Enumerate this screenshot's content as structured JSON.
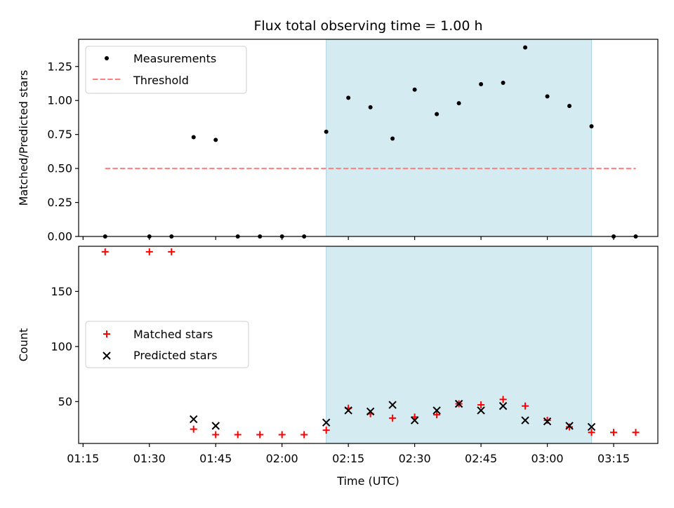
{
  "chart_data": [
    {
      "type": "scatter",
      "title": "Flux total observing time = 1.00 h",
      "ylabel": "Matched/Predicted stars",
      "ylim": [
        0,
        1.45
      ],
      "xlim": [
        "01:14",
        "03:25"
      ],
      "yticks": [
        "0.00",
        "0.25",
        "0.50",
        "0.75",
        "1.00",
        "1.25"
      ],
      "shaded_interval": [
        "02:10",
        "03:10"
      ],
      "shade_color": "#d4ebf1",
      "legend": {
        "placement": "upper-left",
        "entries": [
          "Measurements",
          "Threshold"
        ]
      },
      "series": [
        {
          "name": "Measurements",
          "marker": "dot",
          "color": "#000000",
          "x": [
            "01:20",
            "01:30",
            "01:35",
            "01:40",
            "01:45",
            "01:50",
            "01:55",
            "02:00",
            "02:05",
            "02:10",
            "02:15",
            "02:20",
            "02:25",
            "02:30",
            "02:35",
            "02:40",
            "02:45",
            "02:50",
            "02:55",
            "03:00",
            "03:05",
            "03:10",
            "03:15",
            "03:20"
          ],
          "y": [
            0,
            0,
            0,
            0.73,
            0.71,
            0,
            0,
            0,
            0,
            0.77,
            1.02,
            0.95,
            0.72,
            1.08,
            0.9,
            0.98,
            1.12,
            1.13,
            1.39,
            1.03,
            0.96,
            0.81,
            0,
            0
          ]
        },
        {
          "name": "Threshold",
          "marker": "dashed-line",
          "color": "#ff7f7f",
          "x": [
            "01:20",
            "03:20"
          ],
          "y": [
            0.5,
            0.5
          ]
        }
      ]
    },
    {
      "type": "scatter",
      "xlabel": "Time (UTC)",
      "ylabel": "Count",
      "ylim": [
        12,
        191
      ],
      "xticks": [
        "01:15",
        "01:30",
        "01:45",
        "02:00",
        "02:15",
        "02:30",
        "02:45",
        "03:00",
        "03:15"
      ],
      "yticks": [
        "50",
        "100",
        "150"
      ],
      "shaded_interval": [
        "02:10",
        "03:10"
      ],
      "shade_color": "#d4ebf1",
      "legend": {
        "placement": "center-left",
        "entries": [
          "Matched stars",
          "Predicted stars"
        ]
      },
      "series": [
        {
          "name": "Matched stars",
          "marker": "plus",
          "color": "#ff0000",
          "x": [
            "01:20",
            "01:30",
            "01:35",
            "01:40",
            "01:45",
            "01:50",
            "01:55",
            "02:00",
            "02:05",
            "02:10",
            "02:15",
            "02:20",
            "02:25",
            "02:30",
            "02:35",
            "02:40",
            "02:45",
            "02:50",
            "02:55",
            "03:00",
            "03:05",
            "03:10",
            "03:15",
            "03:20"
          ],
          "y": [
            186,
            186,
            186,
            25,
            20,
            20,
            20,
            20,
            20,
            24,
            44,
            39,
            35,
            36,
            38,
            48,
            47,
            52,
            46,
            33,
            27,
            22,
            22,
            22
          ]
        },
        {
          "name": "Predicted stars",
          "marker": "x",
          "color": "#000000",
          "x": [
            "01:40",
            "01:45",
            "02:10",
            "02:15",
            "02:20",
            "02:25",
            "02:30",
            "02:35",
            "02:40",
            "02:45",
            "02:50",
            "02:55",
            "03:00",
            "03:05",
            "03:10"
          ],
          "y": [
            34,
            28,
            31,
            42,
            41,
            47,
            33,
            42,
            48,
            42,
            46,
            33,
            32,
            28,
            27
          ]
        }
      ]
    }
  ]
}
